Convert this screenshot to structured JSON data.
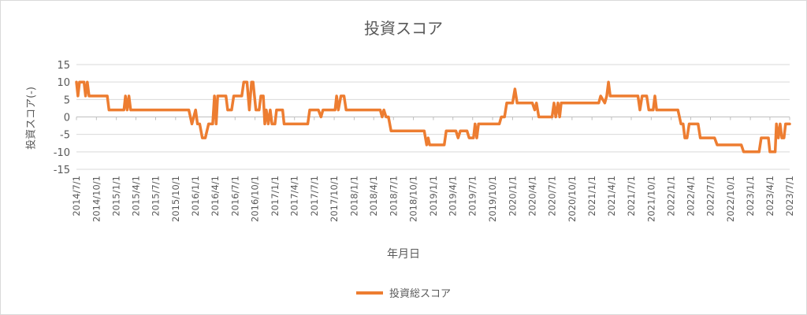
{
  "chart_data": {
    "type": "line",
    "title": "投資スコア",
    "xlabel": "年月日",
    "ylabel": "投資スコア(-)",
    "ylim": [
      -15,
      15
    ],
    "yticks": [
      15,
      10,
      5,
      0,
      -5,
      -10,
      -15
    ],
    "xlim": [
      "2014/7/1",
      "2023/7/1"
    ],
    "x_tick_labels": [
      "2014/7/1",
      "2014/10/1",
      "2015/1/1",
      "2015/4/1",
      "2015/7/1",
      "2015/10/1",
      "2016/1/1",
      "2016/4/1",
      "2016/7/1",
      "2016/10/1",
      "2017/1/1",
      "2017/4/1",
      "2017/7/1",
      "2017/10/1",
      "2018/1/1",
      "2018/4/1",
      "2018/7/1",
      "2018/10/1",
      "2019/1/1",
      "2019/4/1",
      "2019/7/1",
      "2019/10/1",
      "2020/1/1",
      "2020/4/1",
      "2020/7/1",
      "2020/10/1",
      "2021/1/1",
      "2021/4/1",
      "2021/7/1",
      "2021/10/1",
      "2022/1/1",
      "2022/4/1",
      "2022/7/1",
      "2022/10/1",
      "2023/1/1",
      "2023/4/1",
      "2023/7/1"
    ],
    "grid": "horizontal",
    "legend": "bottom",
    "colors": {
      "series": "#ED7D31",
      "grid": "#d9d9d9",
      "text": "#595959"
    },
    "series": [
      {
        "name": "投資総スコア",
        "points": [
          [
            "2014/7/1",
            10
          ],
          [
            "2014/7/8",
            6
          ],
          [
            "2014/7/15",
            10
          ],
          [
            "2014/8/5",
            10
          ],
          [
            "2014/8/12",
            6
          ],
          [
            "2014/8/20",
            10
          ],
          [
            "2014/8/28",
            6
          ],
          [
            "2014/11/20",
            6
          ],
          [
            "2014/11/28",
            2
          ],
          [
            "2015/2/5",
            2
          ],
          [
            "2015/2/12",
            6
          ],
          [
            "2015/2/20",
            2
          ],
          [
            "2015/2/28",
            6
          ],
          [
            "2015/3/8",
            2
          ],
          [
            "2015/12/1",
            2
          ],
          [
            "2015/12/15",
            -2
          ],
          [
            "2016/1/1",
            2
          ],
          [
            "2016/1/10",
            -2
          ],
          [
            "2016/1/20",
            -2
          ],
          [
            "2016/2/1",
            -6
          ],
          [
            "2016/2/15",
            -6
          ],
          [
            "2016/3/1",
            -2
          ],
          [
            "2016/3/20",
            -2
          ],
          [
            "2016/3/28",
            6
          ],
          [
            "2016/4/5",
            -2
          ],
          [
            "2016/4/12",
            6
          ],
          [
            "2016/5/20",
            6
          ],
          [
            "2016/5/28",
            2
          ],
          [
            "2016/6/15",
            2
          ],
          [
            "2016/6/25",
            6
          ],
          [
            "2016/8/1",
            6
          ],
          [
            "2016/8/10",
            10
          ],
          [
            "2016/8/25",
            10
          ],
          [
            "2016/9/5",
            2
          ],
          [
            "2016/9/15",
            10
          ],
          [
            "2016/9/22",
            10
          ],
          [
            "2016/10/5",
            2
          ],
          [
            "2016/10/20",
            2
          ],
          [
            "2016/10/28",
            6
          ],
          [
            "2016/11/8",
            6
          ],
          [
            "2016/11/15",
            -2
          ],
          [
            "2016/11/22",
            2
          ],
          [
            "2016/12/1",
            -2
          ],
          [
            "2016/12/10",
            2
          ],
          [
            "2016/12/18",
            -2
          ],
          [
            "2017/1/1",
            -2
          ],
          [
            "2017/1/8",
            2
          ],
          [
            "2017/2/5",
            2
          ],
          [
            "2017/2/12",
            -2
          ],
          [
            "2017/6/1",
            -2
          ],
          [
            "2017/6/10",
            2
          ],
          [
            "2017/7/20",
            2
          ],
          [
            "2017/8/1",
            0
          ],
          [
            "2017/8/10",
            2
          ],
          [
            "2017/10/5",
            2
          ],
          [
            "2017/10/12",
            6
          ],
          [
            "2017/10/20",
            2
          ],
          [
            "2017/11/1",
            6
          ],
          [
            "2017/11/15",
            6
          ],
          [
            "2017/11/25",
            2
          ],
          [
            "2018/5/1",
            2
          ],
          [
            "2018/5/10",
            0
          ],
          [
            "2018/5/18",
            2
          ],
          [
            "2018/5/28",
            0
          ],
          [
            "2018/6/8",
            0
          ],
          [
            "2018/6/20",
            -4
          ],
          [
            "2018/11/20",
            -4
          ],
          [
            "2018/12/1",
            -8
          ],
          [
            "2018/12/8",
            -6
          ],
          [
            "2018/12/15",
            -8
          ],
          [
            "2019/2/20",
            -8
          ],
          [
            "2019/3/1",
            -4
          ],
          [
            "2019/4/15",
            -4
          ],
          [
            "2019/4/25",
            -6
          ],
          [
            "2019/5/5",
            -4
          ],
          [
            "2019/6/5",
            -4
          ],
          [
            "2019/6/15",
            -6
          ],
          [
            "2019/7/5",
            -6
          ],
          [
            "2019/7/12",
            -2
          ],
          [
            "2019/7/20",
            -6
          ],
          [
            "2019/7/28",
            -2
          ],
          [
            "2019/11/1",
            -2
          ],
          [
            "2019/11/10",
            0
          ],
          [
            "2019/11/25",
            0
          ],
          [
            "2019/12/5",
            4
          ],
          [
            "2020/1/1",
            4
          ],
          [
            "2020/1/12",
            8
          ],
          [
            "2020/1/22",
            4
          ],
          [
            "2020/4/1",
            4
          ],
          [
            "2020/4/12",
            2
          ],
          [
            "2020/4/20",
            4
          ],
          [
            "2020/5/1",
            0
          ],
          [
            "2020/7/1",
            0
          ],
          [
            "2020/7/10",
            4
          ],
          [
            "2020/7/18",
            0
          ],
          [
            "2020/7/28",
            4
          ],
          [
            "2020/8/5",
            0
          ],
          [
            "2020/8/12",
            4
          ],
          [
            "2021/2/1",
            4
          ],
          [
            "2021/2/10",
            6
          ],
          [
            "2021/3/1",
            4
          ],
          [
            "2021/3/10",
            6
          ],
          [
            "2021/3/18",
            10
          ],
          [
            "2021/3/26",
            6
          ],
          [
            "2021/8/1",
            6
          ],
          [
            "2021/8/10",
            2
          ],
          [
            "2021/8/20",
            6
          ],
          [
            "2021/9/10",
            6
          ],
          [
            "2021/9/20",
            2
          ],
          [
            "2021/10/10",
            2
          ],
          [
            "2021/10/18",
            6
          ],
          [
            "2021/10/26",
            2
          ],
          [
            "2022/2/1",
            2
          ],
          [
            "2022/2/15",
            -2
          ],
          [
            "2022/2/25",
            -2
          ],
          [
            "2022/3/5",
            -6
          ],
          [
            "2022/3/15",
            -6
          ],
          [
            "2022/3/25",
            -2
          ],
          [
            "2022/5/5",
            -2
          ],
          [
            "2022/5/15",
            -6
          ],
          [
            "2022/7/20",
            -6
          ],
          [
            "2022/8/1",
            -8
          ],
          [
            "2022/11/20",
            -8
          ],
          [
            "2022/12/1",
            -10
          ],
          [
            "2023/2/10",
            -10
          ],
          [
            "2023/2/20",
            -6
          ],
          [
            "2023/3/25",
            -6
          ],
          [
            "2023/4/1",
            -10
          ],
          [
            "2023/4/25",
            -10
          ],
          [
            "2023/5/1",
            -2
          ],
          [
            "2023/5/10",
            -6
          ],
          [
            "2023/5/18",
            -2
          ],
          [
            "2023/5/26",
            -6
          ],
          [
            "2023/6/5",
            -6
          ],
          [
            "2023/6/12",
            -2
          ],
          [
            "2023/7/1",
            -2
          ]
        ]
      }
    ]
  }
}
